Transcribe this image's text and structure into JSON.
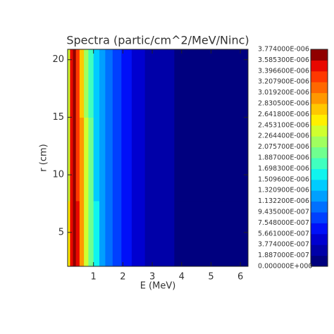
{
  "chart_data": {
    "type": "contour",
    "title": "Spectra (partic/cm^2/MeV/Ninc)",
    "xlabel": "E (MeV)",
    "ylabel": "r (cm)",
    "x": [
      0.15,
      0.25,
      0.35,
      0.45,
      0.6,
      0.75,
      0.9,
      1.1,
      1.3,
      1.5,
      1.8,
      2.1,
      2.5,
      3.0,
      3.5,
      4.0,
      5.0,
      6.0
    ],
    "y": [
      4,
      11.5,
      18.5
    ],
    "z": [
      [
        2.5e-06,
        3.5e-06,
        3.75e-06,
        3.4e-06,
        2.9e-06,
        2.35e-06,
        1.95e-06,
        1.55e-06,
        1.22e-06,
        1e-06,
        8e-07,
        6.4e-07,
        5e-07,
        3.4e-07,
        2.4e-07,
        1.6e-07,
        8e-08,
        3e-08
      ],
      [
        2.45e-06,
        3.45e-06,
        3.72e-06,
        3.35e-06,
        2.85e-06,
        2.3e-06,
        1.9e-06,
        1.5e-06,
        1.2e-06,
        9.8e-07,
        7.8e-07,
        6.2e-07,
        4.8e-07,
        3.3e-07,
        2.3e-07,
        1.5e-07,
        7e-08,
        3e-08
      ],
      [
        2.4e-06,
        3.4e-06,
        3.7e-06,
        3.3e-06,
        2.8e-06,
        2.25e-06,
        1.85e-06,
        1.45e-06,
        1.15e-06,
        9.5e-07,
        7.6e-07,
        6e-07,
        4.6e-07,
        3.2e-07,
        2.2e-07,
        1.4e-07,
        7e-08,
        2e-08
      ]
    ],
    "xlim": [
      0.12,
      6.26
    ],
    "ylim": [
      2.05,
      20.9
    ],
    "xticks": [
      1,
      2,
      3,
      4,
      5,
      6
    ],
    "yticks": [
      5,
      10,
      15,
      20
    ],
    "levels": [
      {
        "value": 0,
        "label": "0.000000E+000"
      },
      {
        "value": 1.887e-07,
        "label": "1.887000E-007"
      },
      {
        "value": 3.774e-07,
        "label": "3.774000E-007"
      },
      {
        "value": 5.661e-07,
        "label": "5.661000E-007"
      },
      {
        "value": 7.548e-07,
        "label": "7.548000E-007"
      },
      {
        "value": 9.435e-07,
        "label": "9.435000E-007"
      },
      {
        "value": 1.1322e-06,
        "label": "1.132200E-006"
      },
      {
        "value": 1.3209e-06,
        "label": "1.320900E-006"
      },
      {
        "value": 1.5096e-06,
        "label": "1.509600E-006"
      },
      {
        "value": 1.6983e-06,
        "label": "1.698300E-006"
      },
      {
        "value": 1.887e-06,
        "label": "1.887000E-006"
      },
      {
        "value": 2.0757e-06,
        "label": "2.075700E-006"
      },
      {
        "value": 2.2644e-06,
        "label": "2.264400E-006"
      },
      {
        "value": 2.4531e-06,
        "label": "2.453100E-006"
      },
      {
        "value": 2.6418e-06,
        "label": "2.641800E-006"
      },
      {
        "value": 2.8305e-06,
        "label": "2.830500E-006"
      },
      {
        "value": 3.0192e-06,
        "label": "3.019200E-006"
      },
      {
        "value": 3.2079e-06,
        "label": "3.207900E-006"
      },
      {
        "value": 3.3966e-06,
        "label": "3.396600E-006"
      },
      {
        "value": 3.5853e-06,
        "label": "3.585300E-006"
      },
      {
        "value": 3.774e-06,
        "label": "3.774000E-006"
      }
    ],
    "colors": [
      "#00007f",
      "#0000a8",
      "#0000d0",
      "#0010f8",
      "#0040ff",
      "#0070ff",
      "#00a0ff",
      "#00ccff",
      "#10f4ee",
      "#40ffbf",
      "#70ff8f",
      "#a0ff5f",
      "#d0ff2f",
      "#fff000",
      "#ffc800",
      "#ff9800",
      "#ff6800",
      "#ff3800",
      "#e80800",
      "#900000"
    ]
  }
}
